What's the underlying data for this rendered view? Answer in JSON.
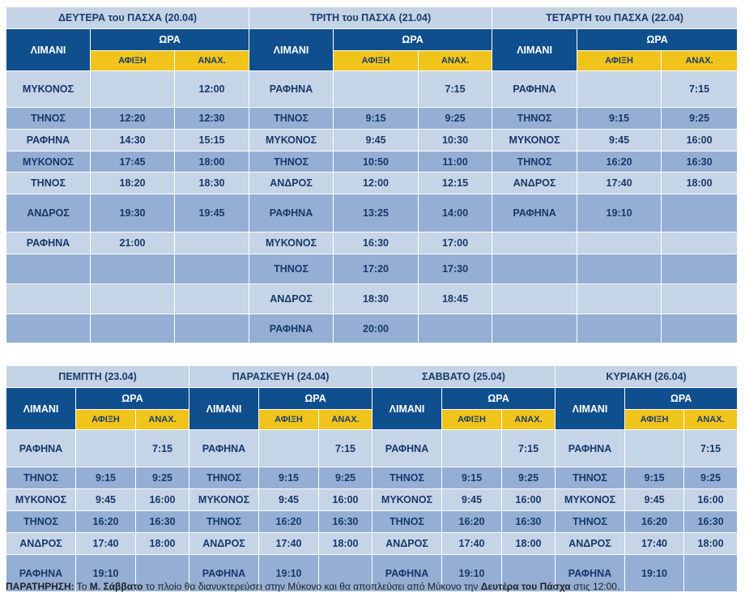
{
  "labels": {
    "port": "ΛΙΜΑΝΙ",
    "time": "ΩΡΑ",
    "arrival": "ΑΦΙΞΗ",
    "departure": "ΑΝΑΧ."
  },
  "top_days": [
    {
      "title": "ΔΕΥΤΕΡΑ του ΠΑΣΧΑ (20.04)",
      "rows": [
        [
          "ΜΥΚΟΝΟΣ",
          "",
          "12:00"
        ],
        [
          "ΤΗΝΟΣ",
          "12:20",
          "12:30"
        ],
        [
          "ΡΑΦΗΝΑ",
          "14:30",
          "15:15"
        ],
        [
          "ΜΥΚΟΝΟΣ",
          "17:45",
          "18:00"
        ],
        [
          "ΤΗΝΟΣ",
          "18:20",
          "18:30"
        ],
        [
          "ΑΝΔΡΟΣ",
          "19:30",
          "19:45"
        ],
        [
          "ΡΑΦΗΝΑ",
          "21:00",
          ""
        ],
        [
          "",
          "",
          ""
        ],
        [
          "",
          "",
          ""
        ],
        [
          "",
          "",
          ""
        ]
      ]
    },
    {
      "title": "ΤΡΙΤΗ του ΠΑΣΧΑ (21.04)",
      "rows": [
        [
          "ΡΑΦΗΝΑ",
          "",
          "7:15"
        ],
        [
          "ΤΗΝΟΣ",
          "9:15",
          "9:25"
        ],
        [
          "ΜΥΚΟΝΟΣ",
          "9:45",
          "10:30"
        ],
        [
          "ΤΗΝΟΣ",
          "10:50",
          "11:00"
        ],
        [
          "ΑΝΔΡΟΣ",
          "12:00",
          "12:15"
        ],
        [
          "ΡΑΦΗΝΑ",
          "13:25",
          "14:00"
        ],
        [
          "ΜΥΚΟΝΟΣ",
          "16:30",
          "17:00"
        ],
        [
          "ΤΗΝΟΣ",
          "17:20",
          "17:30"
        ],
        [
          "ΑΝΔΡΟΣ",
          "18:30",
          "18:45"
        ],
        [
          "ΡΑΦΗΝΑ",
          "20:00",
          ""
        ]
      ]
    },
    {
      "title": "ΤΕΤΑΡΤΗ του ΠΑΣΧΑ (22.04)",
      "rows": [
        [
          "ΡΑΦΗΝΑ",
          "",
          "7:15"
        ],
        [
          "ΤΗΝΟΣ",
          "9:15",
          "9:25"
        ],
        [
          "ΜΥΚΟΝΟΣ",
          "9:45",
          "16:00"
        ],
        [
          "ΤΗΝΟΣ",
          "16:20",
          "16:30"
        ],
        [
          "ΑΝΔΡΟΣ",
          "17:40",
          "18:00"
        ],
        [
          "ΡΑΦΗΝΑ",
          "19:10",
          ""
        ],
        [
          "",
          "",
          ""
        ],
        [
          "",
          "",
          ""
        ],
        [
          "",
          "",
          ""
        ],
        [
          "",
          "",
          ""
        ]
      ]
    }
  ],
  "bottom_days": [
    {
      "title": "ΠΕΜΠΤΗ (23.04)",
      "rows": [
        [
          "ΡΑΦΗΝΑ",
          "",
          "7:15"
        ],
        [
          "ΤΗΝΟΣ",
          "9:15",
          "9:25"
        ],
        [
          "ΜΥΚΟΝΟΣ",
          "9:45",
          "16:00"
        ],
        [
          "ΤΗΝΟΣ",
          "16:20",
          "16:30"
        ],
        [
          "ΑΝΔΡΟΣ",
          "17:40",
          "18:00"
        ],
        [
          "ΡΑΦΗΝΑ",
          "19:10",
          ""
        ]
      ]
    },
    {
      "title": "ΠΑΡΑΣΚΕΥΗ (24.04)",
      "rows": [
        [
          "ΡΑΦΗΝΑ",
          "",
          "7:15"
        ],
        [
          "ΤΗΝΟΣ",
          "9:15",
          "9:25"
        ],
        [
          "ΜΥΚΟΝΟΣ",
          "9:45",
          "16:00"
        ],
        [
          "ΤΗΝΟΣ",
          "16:20",
          "16:30"
        ],
        [
          "ΑΝΔΡΟΣ",
          "17:40",
          "18:00"
        ],
        [
          "ΡΑΦΗΝΑ",
          "19:10",
          ""
        ]
      ]
    },
    {
      "title": "ΣΑΒΒΑΤΟ (25.04)",
      "rows": [
        [
          "ΡΑΦΗΝΑ",
          "",
          "7:15"
        ],
        [
          "ΤΗΝΟΣ",
          "9:15",
          "9:25"
        ],
        [
          "ΜΥΚΟΝΟΣ",
          "9:45",
          "16:00"
        ],
        [
          "ΤΗΝΟΣ",
          "16:20",
          "16:30"
        ],
        [
          "ΑΝΔΡΟΣ",
          "17:40",
          "18:00"
        ],
        [
          "ΡΑΦΗΝΑ",
          "19:10",
          ""
        ]
      ]
    },
    {
      "title": "ΚΥΡΙΑΚΗ (26.04)",
      "rows": [
        [
          "ΡΑΦΗΝΑ",
          "",
          "7:15"
        ],
        [
          "ΤΗΝΟΣ",
          "9:15",
          "9:25"
        ],
        [
          "ΜΥΚΟΝΟΣ",
          "9:45",
          "16:00"
        ],
        [
          "ΤΗΝΟΣ",
          "16:20",
          "16:30"
        ],
        [
          "ΑΝΔΡΟΣ",
          "17:40",
          "18:00"
        ],
        [
          "ΡΑΦΗΝΑ",
          "19:10",
          ""
        ]
      ]
    }
  ],
  "note": {
    "label": "ΠΑΡΑΤΗΡΗΣΗ:",
    "part1": " Το ",
    "bold1": "Μ. Σάββατο",
    "part2": " το πλοίο θα διανυκτερεύσει στην Μύκονο και θα αποπλεύσει από Μύκονο την ",
    "bold2": "Δευτέρα του Πάσχα",
    "part3": " στις 12:00."
  }
}
